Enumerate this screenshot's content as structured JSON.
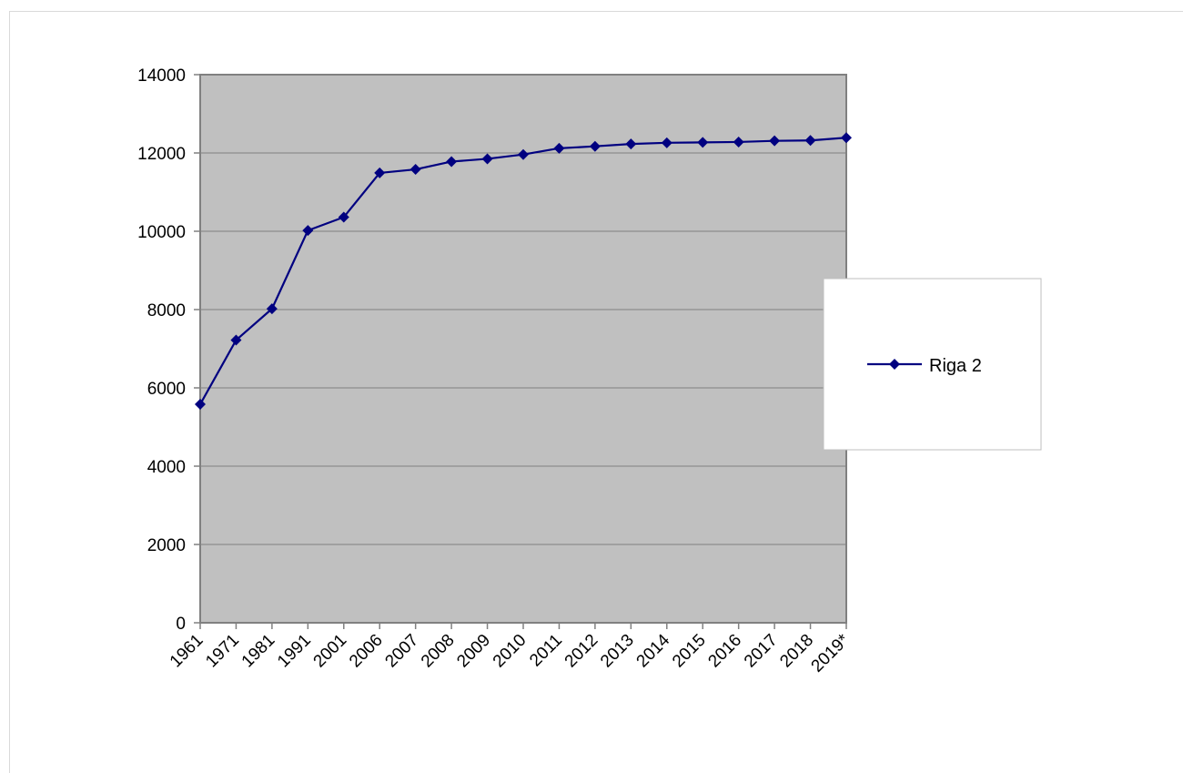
{
  "chart_data": {
    "type": "line",
    "categories": [
      "1961",
      "1971",
      "1981",
      "1991",
      "2001",
      "2006",
      "2007",
      "2008",
      "2009",
      "2010",
      "2011",
      "2012",
      "2013",
      "2014",
      "2015",
      "2016",
      "2017",
      "2018",
      "2019*"
    ],
    "series": [
      {
        "name": "Riga 2",
        "values": [
          5580,
          7220,
          8020,
          10020,
          10360,
          11490,
          11580,
          11780,
          11850,
          11960,
          12120,
          12170,
          12230,
          12260,
          12270,
          12280,
          12310,
          12320,
          12390
        ],
        "color": "#000080"
      }
    ],
    "ylim": [
      0,
      14000
    ],
    "yticks": [
      0,
      2000,
      4000,
      6000,
      8000,
      10000,
      12000,
      14000
    ],
    "grid": "horizontal",
    "plot_background": "#c0c0c0",
    "legend_position": "right",
    "marker": "diamond"
  }
}
